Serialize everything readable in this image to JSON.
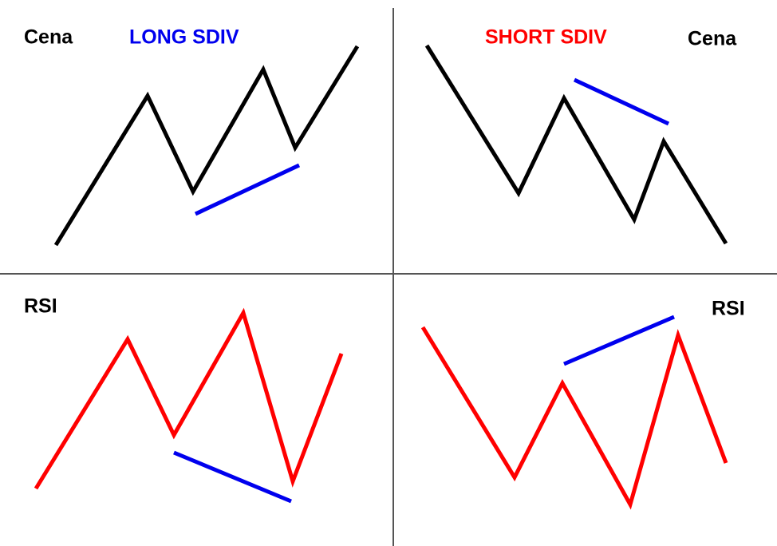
{
  "quadrants": {
    "top_left": {
      "label": "Cena",
      "title": "LONG SDIV"
    },
    "top_right": {
      "label": "Cena",
      "title": "SHORT SDIV"
    },
    "bottom_left": {
      "label": "RSI"
    },
    "bottom_right": {
      "label": "RSI"
    }
  }
}
